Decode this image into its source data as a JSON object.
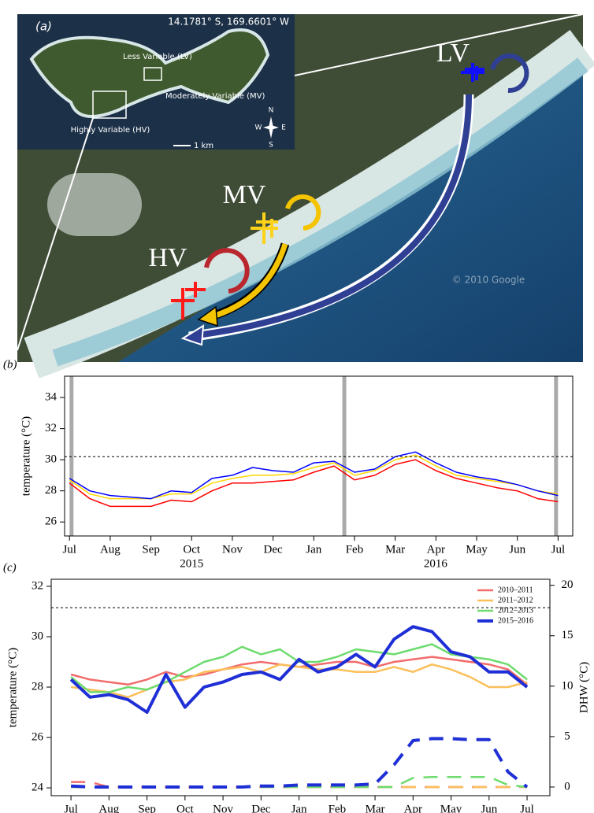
{
  "map_panel": {
    "panel_label": "(a)",
    "coordinates": "14.1781° S, 169.6601° W",
    "inset_labels": [
      "Less Variable (LV)",
      "Moderately Variable (MV)",
      "Highly Variable (HV)"
    ],
    "scale_label": "1 km",
    "compass": [
      "N",
      "S",
      "E",
      "W"
    ],
    "site_labels": [
      "LV",
      "MV",
      "HV"
    ],
    "copyright": "© 2010 Google"
  },
  "chart_data": [
    {
      "type": "line",
      "panel_label": "(b)",
      "y_label": "temperature (°C)",
      "x_group_labels": [
        "2015",
        "2016"
      ],
      "x": [
        0,
        0.5,
        1,
        1.5,
        2,
        2.5,
        3,
        3.5,
        4,
        4.5,
        5,
        5.5,
        6,
        6.5,
        7,
        7.5,
        8,
        8.5,
        9,
        9.5,
        10,
        10.5,
        11,
        11.5,
        12
      ],
      "xlim": [
        -0.12,
        12.36
      ],
      "ylim": [
        25.1,
        35.37
      ],
      "yticks": [
        26,
        28,
        30,
        32,
        34
      ],
      "xticks": [
        {
          "value": 0,
          "label": "Jul"
        },
        {
          "value": 1,
          "label": "Aug"
        },
        {
          "value": 2,
          "label": "Sep"
        },
        {
          "value": 3,
          "label": "Oct"
        },
        {
          "value": 4,
          "label": "Nov"
        },
        {
          "value": 5,
          "label": "Dec"
        },
        {
          "value": 6,
          "label": "Jan"
        },
        {
          "value": 7,
          "label": "Feb"
        },
        {
          "value": 8,
          "label": "Mar"
        },
        {
          "value": 9,
          "label": "Apr"
        },
        {
          "value": 10,
          "label": "May"
        },
        {
          "value": 11,
          "label": "Jun"
        },
        {
          "value": 12,
          "label": "Jul"
        }
      ],
      "threshold": 30.2,
      "event_lines": [
        0.05,
        6.75,
        11.95
      ],
      "series": [
        {
          "color": "#ff0000",
          "values": [
            28.5,
            27.5,
            27.0,
            27.0,
            27.0,
            27.4,
            27.3,
            28.0,
            28.5,
            28.5,
            28.6,
            28.7,
            29.2,
            29.6,
            28.7,
            29.0,
            29.7,
            30.0,
            29.3,
            28.8,
            28.5,
            28.2,
            28.0,
            27.5,
            27.3
          ]
        },
        {
          "color": "#ffd700",
          "values": [
            28.7,
            27.8,
            27.5,
            27.5,
            27.5,
            27.8,
            27.8,
            28.5,
            28.8,
            29.0,
            29.0,
            29.1,
            29.5,
            29.8,
            29.0,
            29.3,
            30.0,
            30.3,
            29.6,
            29.0,
            28.8,
            28.6,
            28.4,
            28.0,
            27.8
          ]
        },
        {
          "color": "#0000ff",
          "values": [
            28.8,
            28.0,
            27.7,
            27.6,
            27.5,
            28.0,
            27.9,
            28.8,
            29.0,
            29.5,
            29.3,
            29.2,
            29.8,
            29.9,
            29.2,
            29.4,
            30.2,
            30.5,
            29.8,
            29.2,
            28.9,
            28.7,
            28.4,
            28.0,
            27.7
          ]
        }
      ]
    },
    {
      "type": "line",
      "panel_label": "(c)",
      "y_label": "temperature (°C)",
      "y2_label": "DHW (°C)",
      "legend": "upper right",
      "x": [
        0,
        0.5,
        1,
        1.5,
        2,
        2.5,
        3,
        3.5,
        4,
        4.5,
        5,
        5.5,
        6,
        6.5,
        7,
        7.5,
        8,
        8.5,
        9,
        9.5,
        10,
        10.5,
        11,
        11.5,
        12
      ],
      "xlim": [
        -0.52,
        12.6
      ],
      "ylim": [
        23.69,
        32.28
      ],
      "yticks": [
        24,
        26,
        28,
        30,
        32
      ],
      "y2lim": [
        -0.86,
        20.6
      ],
      "y2ticks": [
        0,
        5,
        10,
        15,
        20
      ],
      "xticks": [
        {
          "value": 0,
          "label": "Jul"
        },
        {
          "value": 1,
          "label": "Aug"
        },
        {
          "value": 2,
          "label": "Sep"
        },
        {
          "value": 3,
          "label": "Oct"
        },
        {
          "value": 4,
          "label": "Nov"
        },
        {
          "value": 5,
          "label": "Dec"
        },
        {
          "value": 6,
          "label": "Jan"
        },
        {
          "value": 7,
          "label": "Feb"
        },
        {
          "value": 8,
          "label": "Mar"
        },
        {
          "value": 9,
          "label": "Apr"
        },
        {
          "value": 10,
          "label": "May"
        },
        {
          "value": 11,
          "label": "Jun"
        },
        {
          "value": 12,
          "label": "Jul"
        }
      ],
      "threshold": 31.15,
      "series": [
        {
          "name": "2010–2011",
          "color": "#f26c6c",
          "width": 2.5,
          "values": [
            28.5,
            28.3,
            28.2,
            28.1,
            28.3,
            28.6,
            28.4,
            28.5,
            28.7,
            28.9,
            29.0,
            28.9,
            28.8,
            28.9,
            29.0,
            29.0,
            28.8,
            29.0,
            29.1,
            29.2,
            29.1,
            29.0,
            28.9,
            28.7,
            28.1
          ]
        },
        {
          "name": "2011–2012",
          "color": "#fbbf5b",
          "width": 2.5,
          "values": [
            28.0,
            27.9,
            27.8,
            27.6,
            27.9,
            28.2,
            28.3,
            28.6,
            28.7,
            28.8,
            28.6,
            28.9,
            28.8,
            28.7,
            28.7,
            28.6,
            28.6,
            28.8,
            28.6,
            28.9,
            28.7,
            28.4,
            28.0,
            28.0,
            28.2
          ]
        },
        {
          "name": "2012–2013",
          "color": "#6ddb6d",
          "width": 2.5,
          "values": [
            28.4,
            27.8,
            27.8,
            28.0,
            27.9,
            28.2,
            28.6,
            29.0,
            29.2,
            29.6,
            29.3,
            29.5,
            29.0,
            29.0,
            29.2,
            29.5,
            29.4,
            29.3,
            29.5,
            29.7,
            29.3,
            29.2,
            29.1,
            28.9,
            28.3
          ]
        },
        {
          "name": "2015–2016",
          "color": "#1f2fd6",
          "width": 4,
          "values": [
            28.3,
            27.6,
            27.7,
            27.5,
            27.0,
            28.5,
            27.2,
            28.0,
            28.2,
            28.5,
            28.6,
            28.3,
            29.1,
            28.6,
            28.8,
            29.3,
            28.8,
            29.9,
            30.4,
            30.2,
            29.4,
            29.2,
            28.6,
            28.6,
            28.0
          ]
        },
        {
          "color": "#f26c6c",
          "width": 2.5,
          "style": "dashed",
          "axis": "y2",
          "values": [
            0.5,
            0.5,
            0,
            0,
            0,
            0,
            0,
            0,
            0,
            0,
            0,
            0,
            0,
            0,
            0,
            0,
            0,
            0,
            0,
            0,
            0,
            0,
            0,
            0,
            0
          ]
        },
        {
          "color": "#fbbf5b",
          "width": 2.5,
          "style": "dashed",
          "axis": "y2",
          "values": [
            0,
            0,
            0,
            0,
            0,
            0,
            0,
            0,
            0,
            0,
            0,
            0,
            0,
            0,
            0,
            0,
            0,
            0,
            0,
            0,
            0,
            0,
            0,
            0,
            0
          ]
        },
        {
          "color": "#6ddb6d",
          "width": 2.5,
          "style": "dashed",
          "axis": "y2",
          "values": [
            0,
            0,
            0,
            0,
            0,
            0,
            0,
            0,
            0,
            0,
            0,
            0,
            0,
            0,
            0,
            0,
            0,
            0,
            0.9,
            1.0,
            1.0,
            1.0,
            1.0,
            0.2,
            0
          ]
        },
        {
          "color": "#1f2fd6",
          "width": 4,
          "style": "dashed",
          "axis": "y2",
          "values": [
            0.1,
            0,
            0,
            0,
            0,
            0,
            0,
            0,
            0,
            0,
            0.1,
            0.1,
            0.2,
            0.2,
            0.2,
            0.2,
            0.3,
            2.2,
            4.6,
            4.8,
            4.8,
            4.7,
            4.7,
            1.5,
            0
          ]
        }
      ]
    }
  ]
}
